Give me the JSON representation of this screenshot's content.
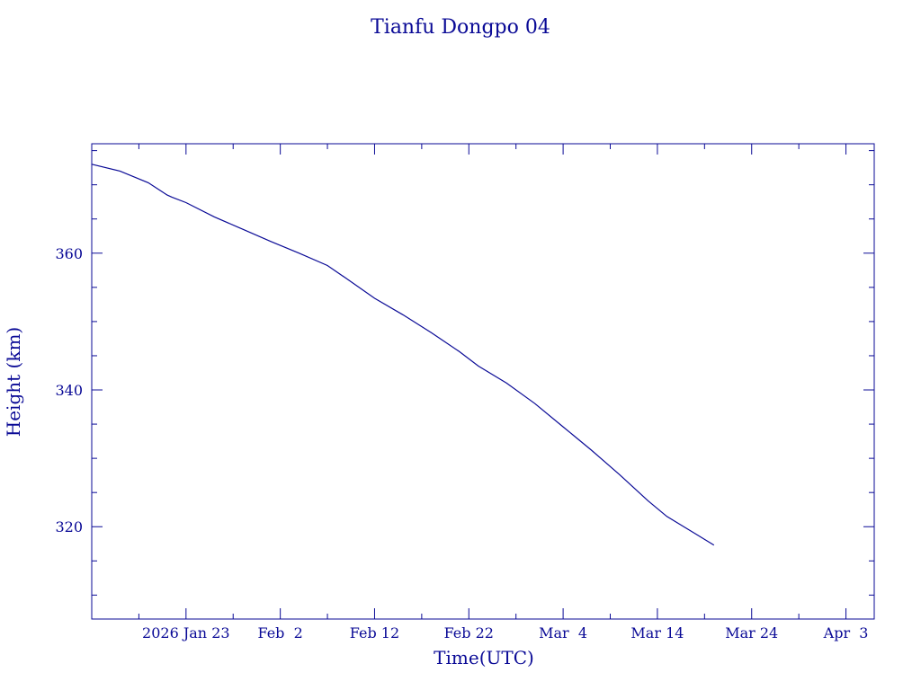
{
  "chart_data": {
    "type": "line",
    "title": "Tianfu Dongpo 04",
    "xlabel": "Time(UTC)",
    "ylabel": "Height (km)",
    "x_tick_labels": [
      "2026 Jan 23",
      "Feb  2",
      "Feb 12",
      "Feb 22",
      "Mar  4",
      "Mar 14",
      "Mar 24",
      "Apr  3"
    ],
    "y_tick_labels": [
      "320",
      "340",
      "360"
    ],
    "xlim": [
      "2026-01-13",
      "2026-04-06"
    ],
    "ylim": [
      306.5,
      376
    ],
    "grid": false,
    "series": [
      {
        "color": "#0a0a96",
        "x": [
          "2026-01-13",
          "2026-01-16",
          "2026-01-19",
          "2026-01-20",
          "2026-01-21",
          "2026-01-21T12:00",
          "2026-01-23",
          "2026-01-26",
          "2026-01-29",
          "2026-02-01",
          "2026-02-04",
          "2026-02-07",
          "2026-02-09",
          "2026-02-12",
          "2026-02-15",
          "2026-02-18",
          "2026-02-21",
          "2026-02-23",
          "2026-02-26",
          "2026-03-01",
          "2026-03-04",
          "2026-03-07",
          "2026-03-10",
          "2026-03-13",
          "2026-03-15",
          "2026-03-18",
          "2026-03-20"
        ],
        "y": [
          373,
          372,
          370.3,
          369.4,
          368.5,
          368.2,
          367.4,
          365.3,
          363.5,
          361.7,
          360.0,
          358.2,
          356.3,
          353.4,
          351.0,
          348.4,
          345.6,
          343.5,
          341.0,
          338.0,
          334.6,
          331.2,
          327.6,
          323.8,
          321.5,
          319.0,
          317.3
        ]
      }
    ]
  }
}
